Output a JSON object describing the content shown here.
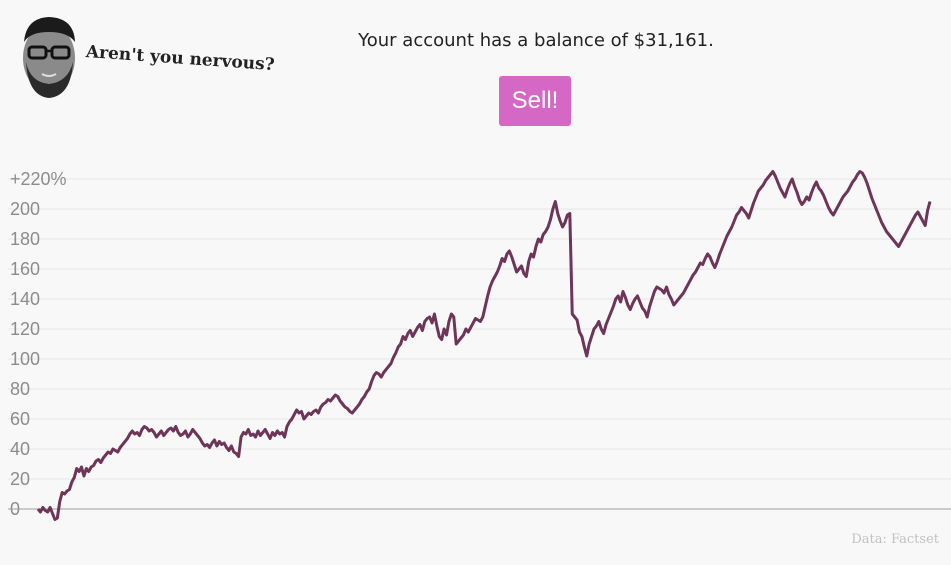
{
  "persona": {
    "avatar_icon": "man-with-glasses-portrait-icon",
    "question": "Aren't you nervous?"
  },
  "header": {
    "balance_text": "Your account has a balance of $31,161."
  },
  "actions": {
    "sell_label": "Sell!",
    "sell_color": "#d567c5"
  },
  "footer": {
    "source": "Data: Factset"
  },
  "chart_data": {
    "type": "line",
    "title": "",
    "xlabel": "",
    "ylabel": "",
    "unit_suffix": "%",
    "top_tick_prefix": "+",
    "ylim": [
      -5,
      225
    ],
    "yticks": [
      0,
      20,
      40,
      60,
      80,
      100,
      120,
      140,
      160,
      180,
      200,
      220
    ],
    "grid": true,
    "line_color": "#6e3559",
    "series": [
      {
        "values": [
          0,
          -2,
          1,
          -1,
          -2,
          1,
          -3,
          -7,
          -6,
          5,
          11,
          10,
          12,
          13,
          18,
          21,
          27,
          25,
          28,
          22,
          27,
          25,
          28,
          29,
          32,
          33,
          31,
          34,
          36,
          38,
          37,
          40,
          39,
          38,
          41,
          43,
          45,
          47,
          50,
          52,
          50,
          51,
          49,
          53,
          55,
          54,
          52,
          53,
          51,
          48,
          50,
          52,
          49,
          51,
          53,
          54,
          52,
          55,
          51,
          49,
          50,
          52,
          48,
          50,
          53,
          51,
          49,
          47,
          44,
          42,
          43,
          41,
          44,
          46,
          42,
          45,
          43,
          44,
          41,
          39,
          42,
          38,
          37,
          35,
          48,
          51,
          50,
          53,
          49,
          50,
          48,
          52,
          49,
          51,
          53,
          50,
          47,
          51,
          49,
          52,
          50,
          51,
          48,
          55,
          58,
          60,
          63,
          66,
          64,
          65,
          60,
          62,
          64,
          63,
          65,
          66,
          64,
          68,
          70,
          71,
          73,
          72,
          74,
          76,
          75,
          72,
          70,
          68,
          67,
          65,
          64,
          66,
          68,
          70,
          73,
          75,
          78,
          80,
          85,
          89,
          91,
          90,
          88,
          91,
          93,
          95,
          97,
          101,
          104,
          108,
          110,
          115,
          113,
          117,
          119,
          115,
          118,
          121,
          123,
          119,
          125,
          127,
          128,
          124,
          130,
          122,
          115,
          113,
          120,
          116,
          125,
          130,
          128,
          110,
          112,
          114,
          116,
          120,
          118,
          121,
          124,
          127,
          126,
          125,
          128,
          135,
          142,
          148,
          152,
          155,
          158,
          162,
          167,
          165,
          170,
          172,
          168,
          163,
          158,
          160,
          162,
          157,
          155,
          165,
          170,
          168,
          175,
          180,
          178,
          183,
          185,
          188,
          193,
          200,
          205,
          197,
          192,
          188,
          191,
          196,
          197,
          130,
          128,
          126,
          118,
          115,
          108,
          102,
          110,
          115,
          120,
          122,
          125,
          120,
          117,
          123,
          127,
          131,
          135,
          140,
          142,
          138,
          145,
          141,
          136,
          133,
          137,
          140,
          142,
          138,
          134,
          132,
          128,
          135,
          140,
          145,
          148,
          147,
          146,
          144,
          148,
          143,
          140,
          136,
          138,
          140,
          142,
          144,
          147,
          150,
          153,
          156,
          158,
          161,
          164,
          163,
          167,
          170,
          168,
          164,
          161,
          165,
          170,
          174,
          178,
          182,
          185,
          188,
          192,
          196,
          198,
          201,
          199,
          197,
          194,
          199,
          204,
          208,
          212,
          214,
          216,
          219,
          221,
          223,
          225,
          222,
          218,
          214,
          211,
          208,
          213,
          217,
          220,
          215,
          211,
          206,
          203,
          205,
          208,
          206,
          211,
          215,
          218,
          214,
          212,
          209,
          205,
          201,
          198,
          196,
          199,
          202,
          205,
          208,
          210,
          212,
          215,
          218,
          220,
          223,
          225,
          224,
          221,
          217,
          212,
          207,
          203,
          199,
          195,
          191,
          188,
          185,
          183,
          181,
          179,
          177,
          175,
          178,
          181,
          184,
          187,
          190,
          193,
          196,
          198,
          195,
          192,
          189,
          199,
          205
        ]
      }
    ]
  }
}
